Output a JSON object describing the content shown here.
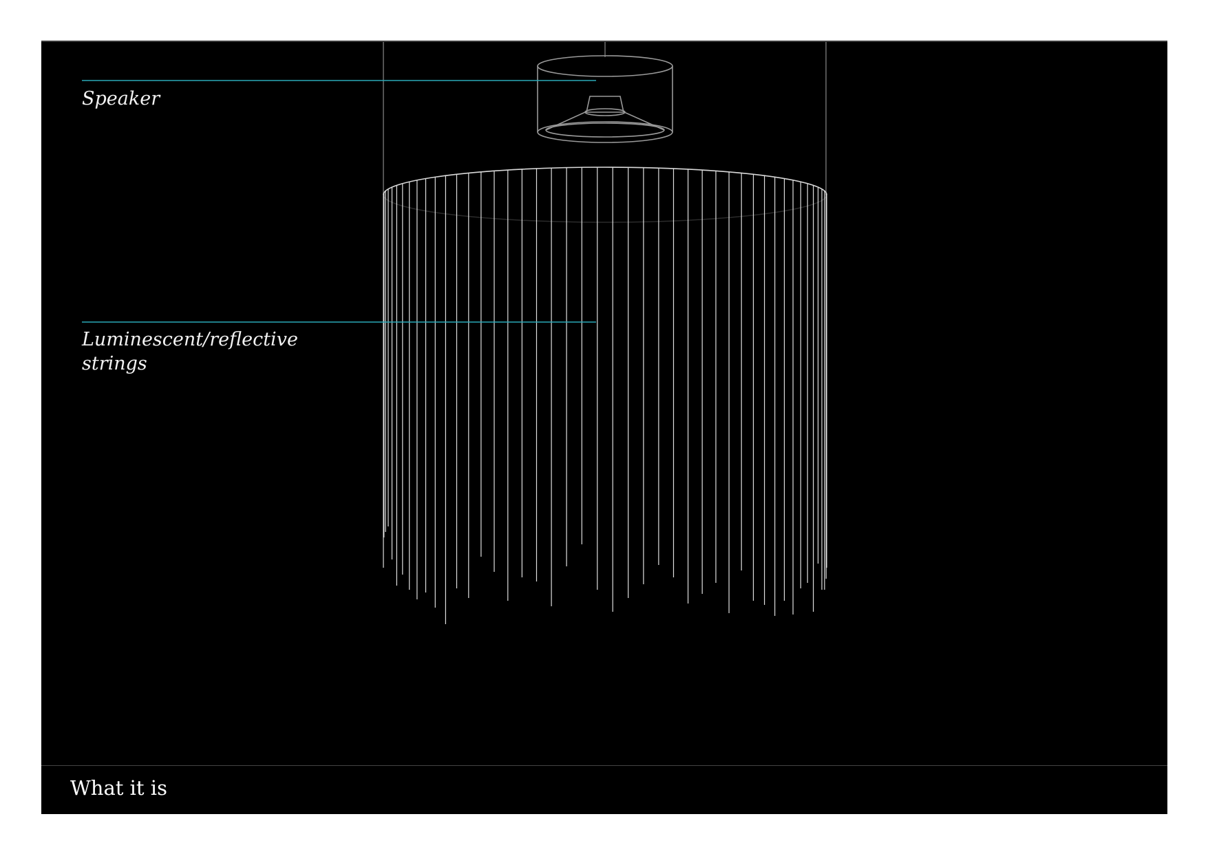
{
  "colors": {
    "background": "#000000",
    "page": "#ffffff",
    "leader_line": "#2aa9b8",
    "wireframe": "#9a9a9a",
    "strings": "#e0e0e0",
    "text": "#f2f2f2"
  },
  "labels": {
    "speaker": "Speaker",
    "strings": "Luminescent/reflective\nstrings"
  },
  "footer": {
    "title": "What it is"
  }
}
